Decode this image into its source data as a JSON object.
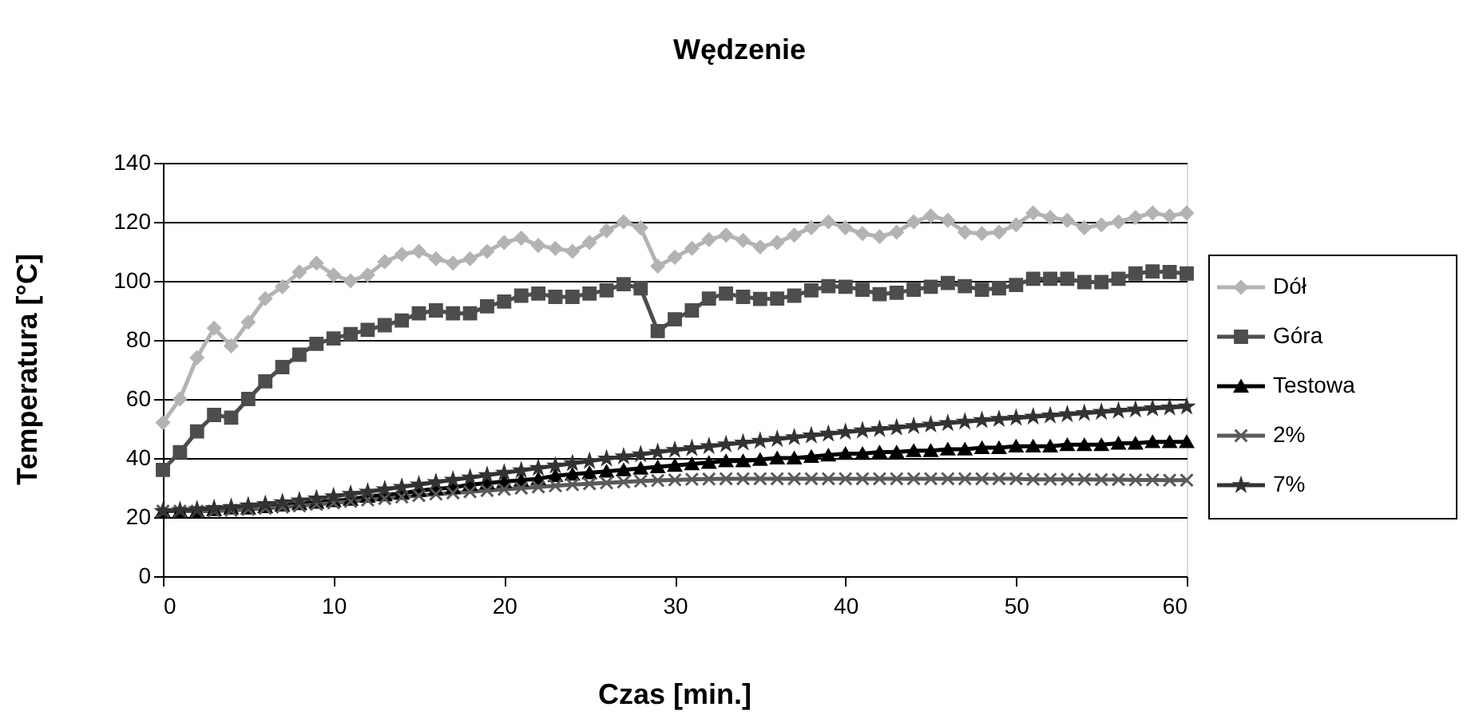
{
  "chart_data": {
    "type": "line",
    "title": "Wędzenie",
    "xlabel": "Czas [min.]",
    "ylabel": "Temperatura [°C]",
    "x": [
      0,
      1,
      2,
      3,
      4,
      5,
      6,
      7,
      8,
      9,
      10,
      11,
      12,
      13,
      14,
      15,
      16,
      17,
      18,
      19,
      20,
      21,
      22,
      23,
      24,
      25,
      26,
      27,
      28,
      29,
      30,
      31,
      32,
      33,
      34,
      35,
      36,
      37,
      38,
      39,
      40,
      41,
      42,
      43,
      44,
      45,
      46,
      47,
      48,
      49,
      50,
      51,
      52,
      53,
      54,
      55,
      56,
      57,
      58,
      59,
      60
    ],
    "series": [
      {
        "name": "Dół",
        "color": "#b3b3b3",
        "marker": "diamond",
        "values": [
          52,
          60,
          74,
          84,
          78,
          86,
          94,
          98,
          103,
          106,
          102,
          100,
          102,
          106.5,
          109,
          110,
          107.5,
          106,
          107.5,
          110,
          113,
          114.5,
          112,
          111,
          110,
          113,
          117,
          120,
          118,
          105,
          108,
          111,
          114,
          115.5,
          113.7,
          111.5,
          113,
          115.5,
          118,
          120,
          118,
          116,
          115,
          116.5,
          120,
          122,
          120.5,
          116.5,
          116,
          116.5,
          119,
          123,
          121.5,
          120.5,
          118,
          119,
          120,
          121.5,
          123,
          122,
          123
        ]
      },
      {
        "name": "Góra",
        "color": "#4d4d4d",
        "marker": "square",
        "values": [
          36,
          42,
          49,
          54.6,
          53.7,
          60,
          66,
          70.8,
          75,
          78.7,
          80.5,
          82,
          83.4,
          85,
          86.6,
          89,
          90,
          89,
          89,
          91.4,
          93,
          95,
          95.7,
          94.6,
          94.6,
          95.7,
          96.8,
          98.9,
          97.5,
          83,
          87,
          90,
          94,
          95.7,
          94.6,
          93.9,
          94,
          95,
          96.8,
          98.2,
          98,
          97,
          95.5,
          96,
          97,
          98,
          99.3,
          98.2,
          97,
          97.5,
          98.6,
          100.7,
          100.7,
          100.7,
          99.6,
          99.6,
          100.7,
          102.5,
          103.2,
          103,
          102.5
        ]
      },
      {
        "name": "Testowa",
        "color": "#000000",
        "marker": "triangle",
        "values": [
          22,
          22,
          22,
          22.5,
          23,
          23,
          23.5,
          24,
          24.5,
          25,
          25.5,
          26,
          27,
          27.5,
          28,
          29,
          29.5,
          30,
          31,
          31.5,
          32,
          32.5,
          33,
          34,
          34.5,
          35,
          35.5,
          36,
          36.5,
          37,
          37.5,
          38,
          38.5,
          39,
          39,
          39.5,
          40,
          40,
          40.5,
          41,
          41.5,
          41.5,
          42,
          42,
          42.5,
          42.5,
          43,
          43,
          43.5,
          43.5,
          44,
          44,
          44,
          44.5,
          44.5,
          44.5,
          45,
          45,
          45.5,
          45.5,
          45.5
        ]
      },
      {
        "name": "2%",
        "color": "#5a5a5a",
        "marker": "cross",
        "values": [
          22,
          22,
          22,
          22,
          22.3,
          22.6,
          23,
          23.4,
          23.8,
          24.3,
          24.8,
          25.3,
          25.8,
          26.3,
          26.8,
          27.3,
          27.8,
          28.2,
          28.6,
          29,
          29.4,
          29.8,
          30.2,
          30.6,
          31,
          31.3,
          31.6,
          31.9,
          32.2,
          32.4,
          32.6,
          32.8,
          32.9,
          33,
          33,
          33,
          33,
          33,
          33,
          33,
          33,
          33,
          33,
          33,
          33,
          33,
          33,
          33,
          33,
          33,
          33,
          32.8,
          32.8,
          32.8,
          32.8,
          32.7,
          32.7,
          32.6,
          32.6,
          32.5,
          32.5
        ]
      },
      {
        "name": "7%",
        "color": "#333333",
        "marker": "star",
        "values": [
          22,
          22.3,
          22.6,
          23,
          23.4,
          23.9,
          24.4,
          25,
          25.6,
          26.3,
          27,
          27.8,
          28.6,
          29.4,
          30.2,
          31,
          31.8,
          32.6,
          33.4,
          34.2,
          35,
          35.8,
          36.6,
          37.4,
          38.2,
          39,
          39.8,
          40.5,
          41.2,
          42,
          42.7,
          43.3,
          44,
          44.6,
          45.2,
          45.8,
          46.4,
          47,
          47.6,
          48.2,
          48.8,
          49.3,
          49.8,
          50.3,
          50.8,
          51.3,
          51.8,
          52.3,
          52.8,
          53.2,
          53.6,
          54,
          54.4,
          54.8,
          55.2,
          55.6,
          56,
          56.4,
          56.8,
          57.1,
          57.4
        ]
      }
    ],
    "xlim": [
      0,
      60
    ],
    "xticks": [
      0,
      10,
      20,
      30,
      40,
      50,
      60
    ],
    "ylim": [
      0,
      140
    ],
    "yticks": [
      0,
      20,
      40,
      60,
      80,
      100,
      120,
      140
    ],
    "grid": "y",
    "legend": "right",
    "line_style": "solid"
  }
}
